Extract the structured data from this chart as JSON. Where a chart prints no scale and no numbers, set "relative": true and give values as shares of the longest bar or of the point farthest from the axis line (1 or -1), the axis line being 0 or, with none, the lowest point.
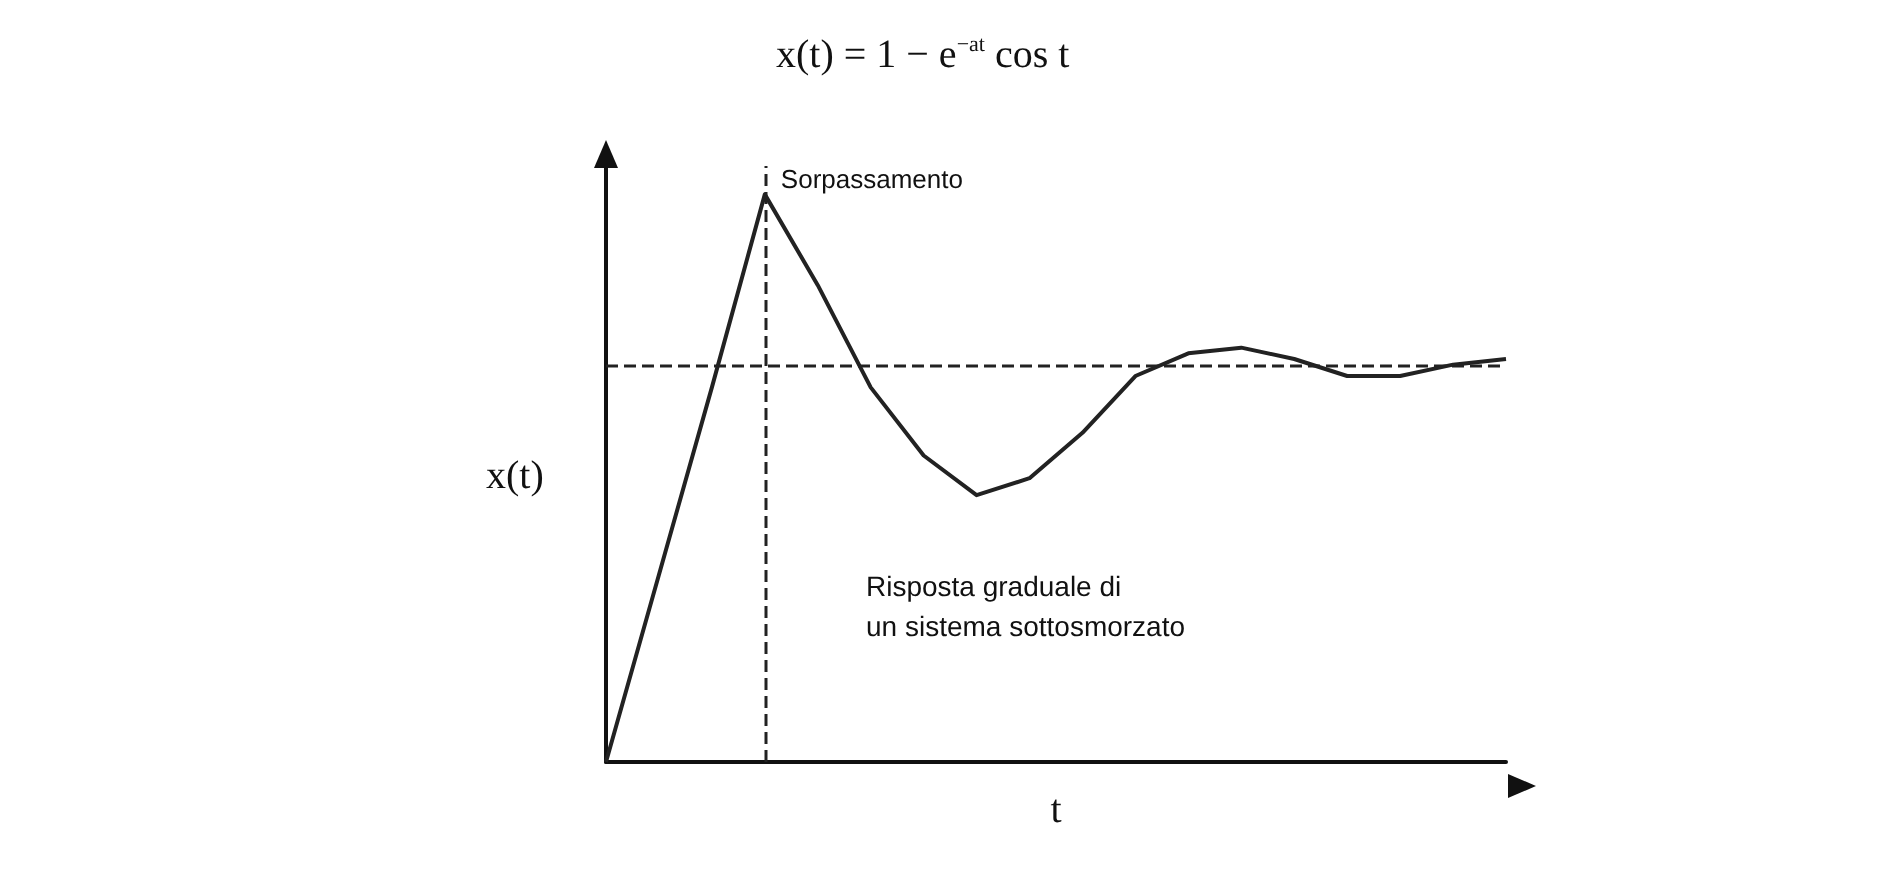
{
  "chart_data": {
    "type": "line",
    "relative": true,
    "title": "x(t) = 1 − e$^{−at}$ cos t",
    "xlabel": "t",
    "ylabel": "x(t)",
    "categories": [
      null,
      null,
      null,
      null,
      null,
      null,
      null,
      null,
      null,
      null,
      null,
      null,
      null,
      null,
      null,
      null,
      null,
      null
    ],
    "series": [
      {
        "color": "#222222",
        "values": [
          0,
          0.33,
          0.66,
          1.0,
          0.84,
          0.66,
          0.54,
          0.47,
          0.5,
          0.58,
          0.68,
          0.72,
          0.73,
          0.71,
          0.68,
          0.68,
          0.7,
          0.71
        ]
      }
    ],
    "ref_lines": [
      {
        "axis": "y",
        "value": 0.7,
        "line_style": "dashed"
      },
      {
        "axis": "x",
        "label": "Sorpassamento",
        "line_style": "dashed"
      }
    ],
    "annotations": [
      "Risposta graduale di\nun sistema sottosmorzato"
    ],
    "marker": "none",
    "line_style": "solid",
    "grid": false
  }
}
